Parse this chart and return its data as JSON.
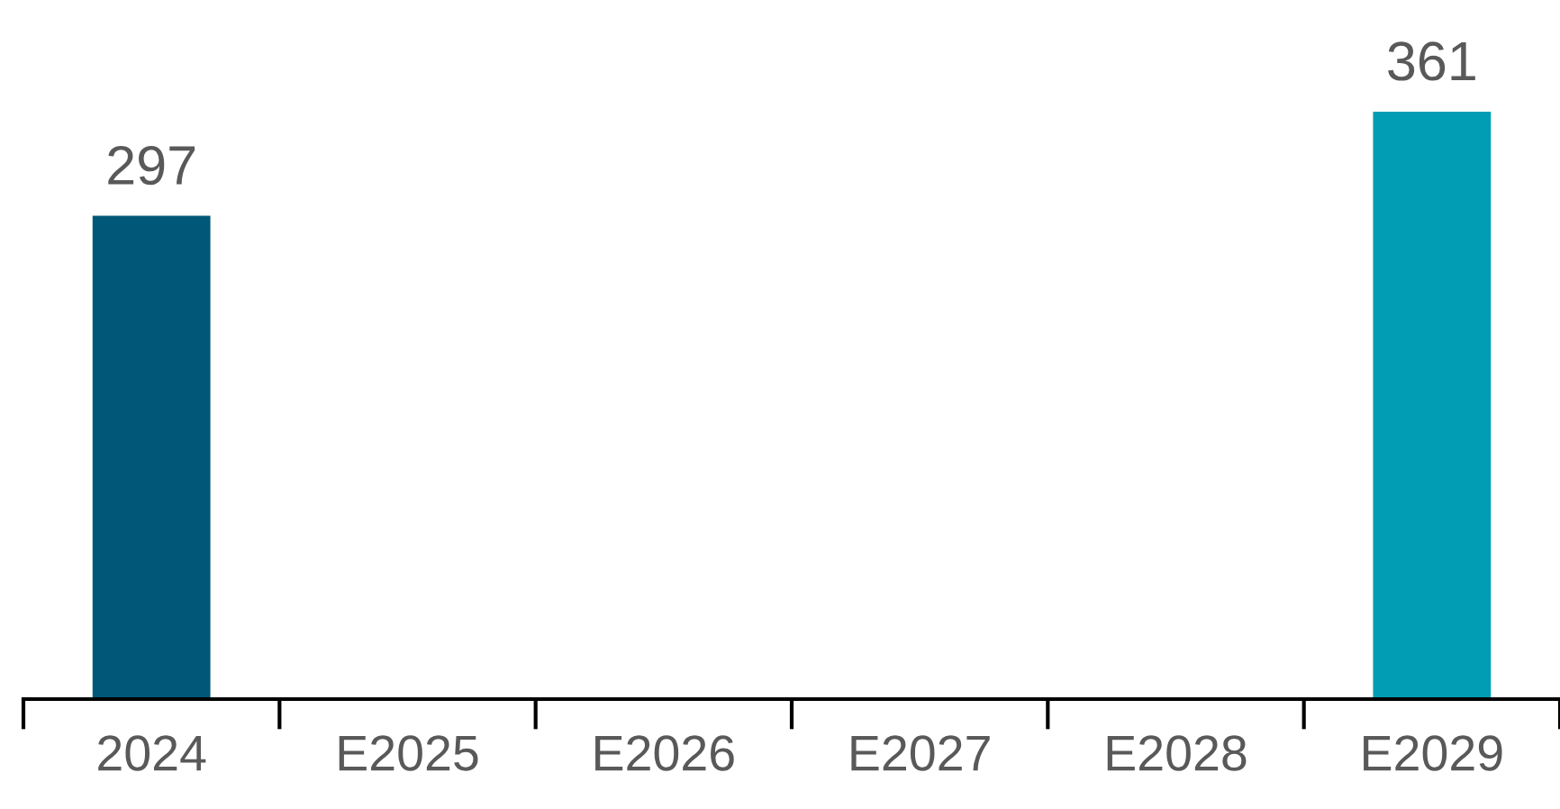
{
  "chart_data": {
    "type": "bar",
    "categories": [
      "2024",
      "E2025",
      "E2026",
      "E2027",
      "E2028",
      "E2029"
    ],
    "values": [
      297,
      null,
      null,
      null,
      null,
      361
    ],
    "colors": [
      "#005777",
      "#005777",
      "#005777",
      "#005777",
      "#005777",
      "#009db4"
    ],
    "data_labels": true,
    "grid": false,
    "legend": false
  }
}
